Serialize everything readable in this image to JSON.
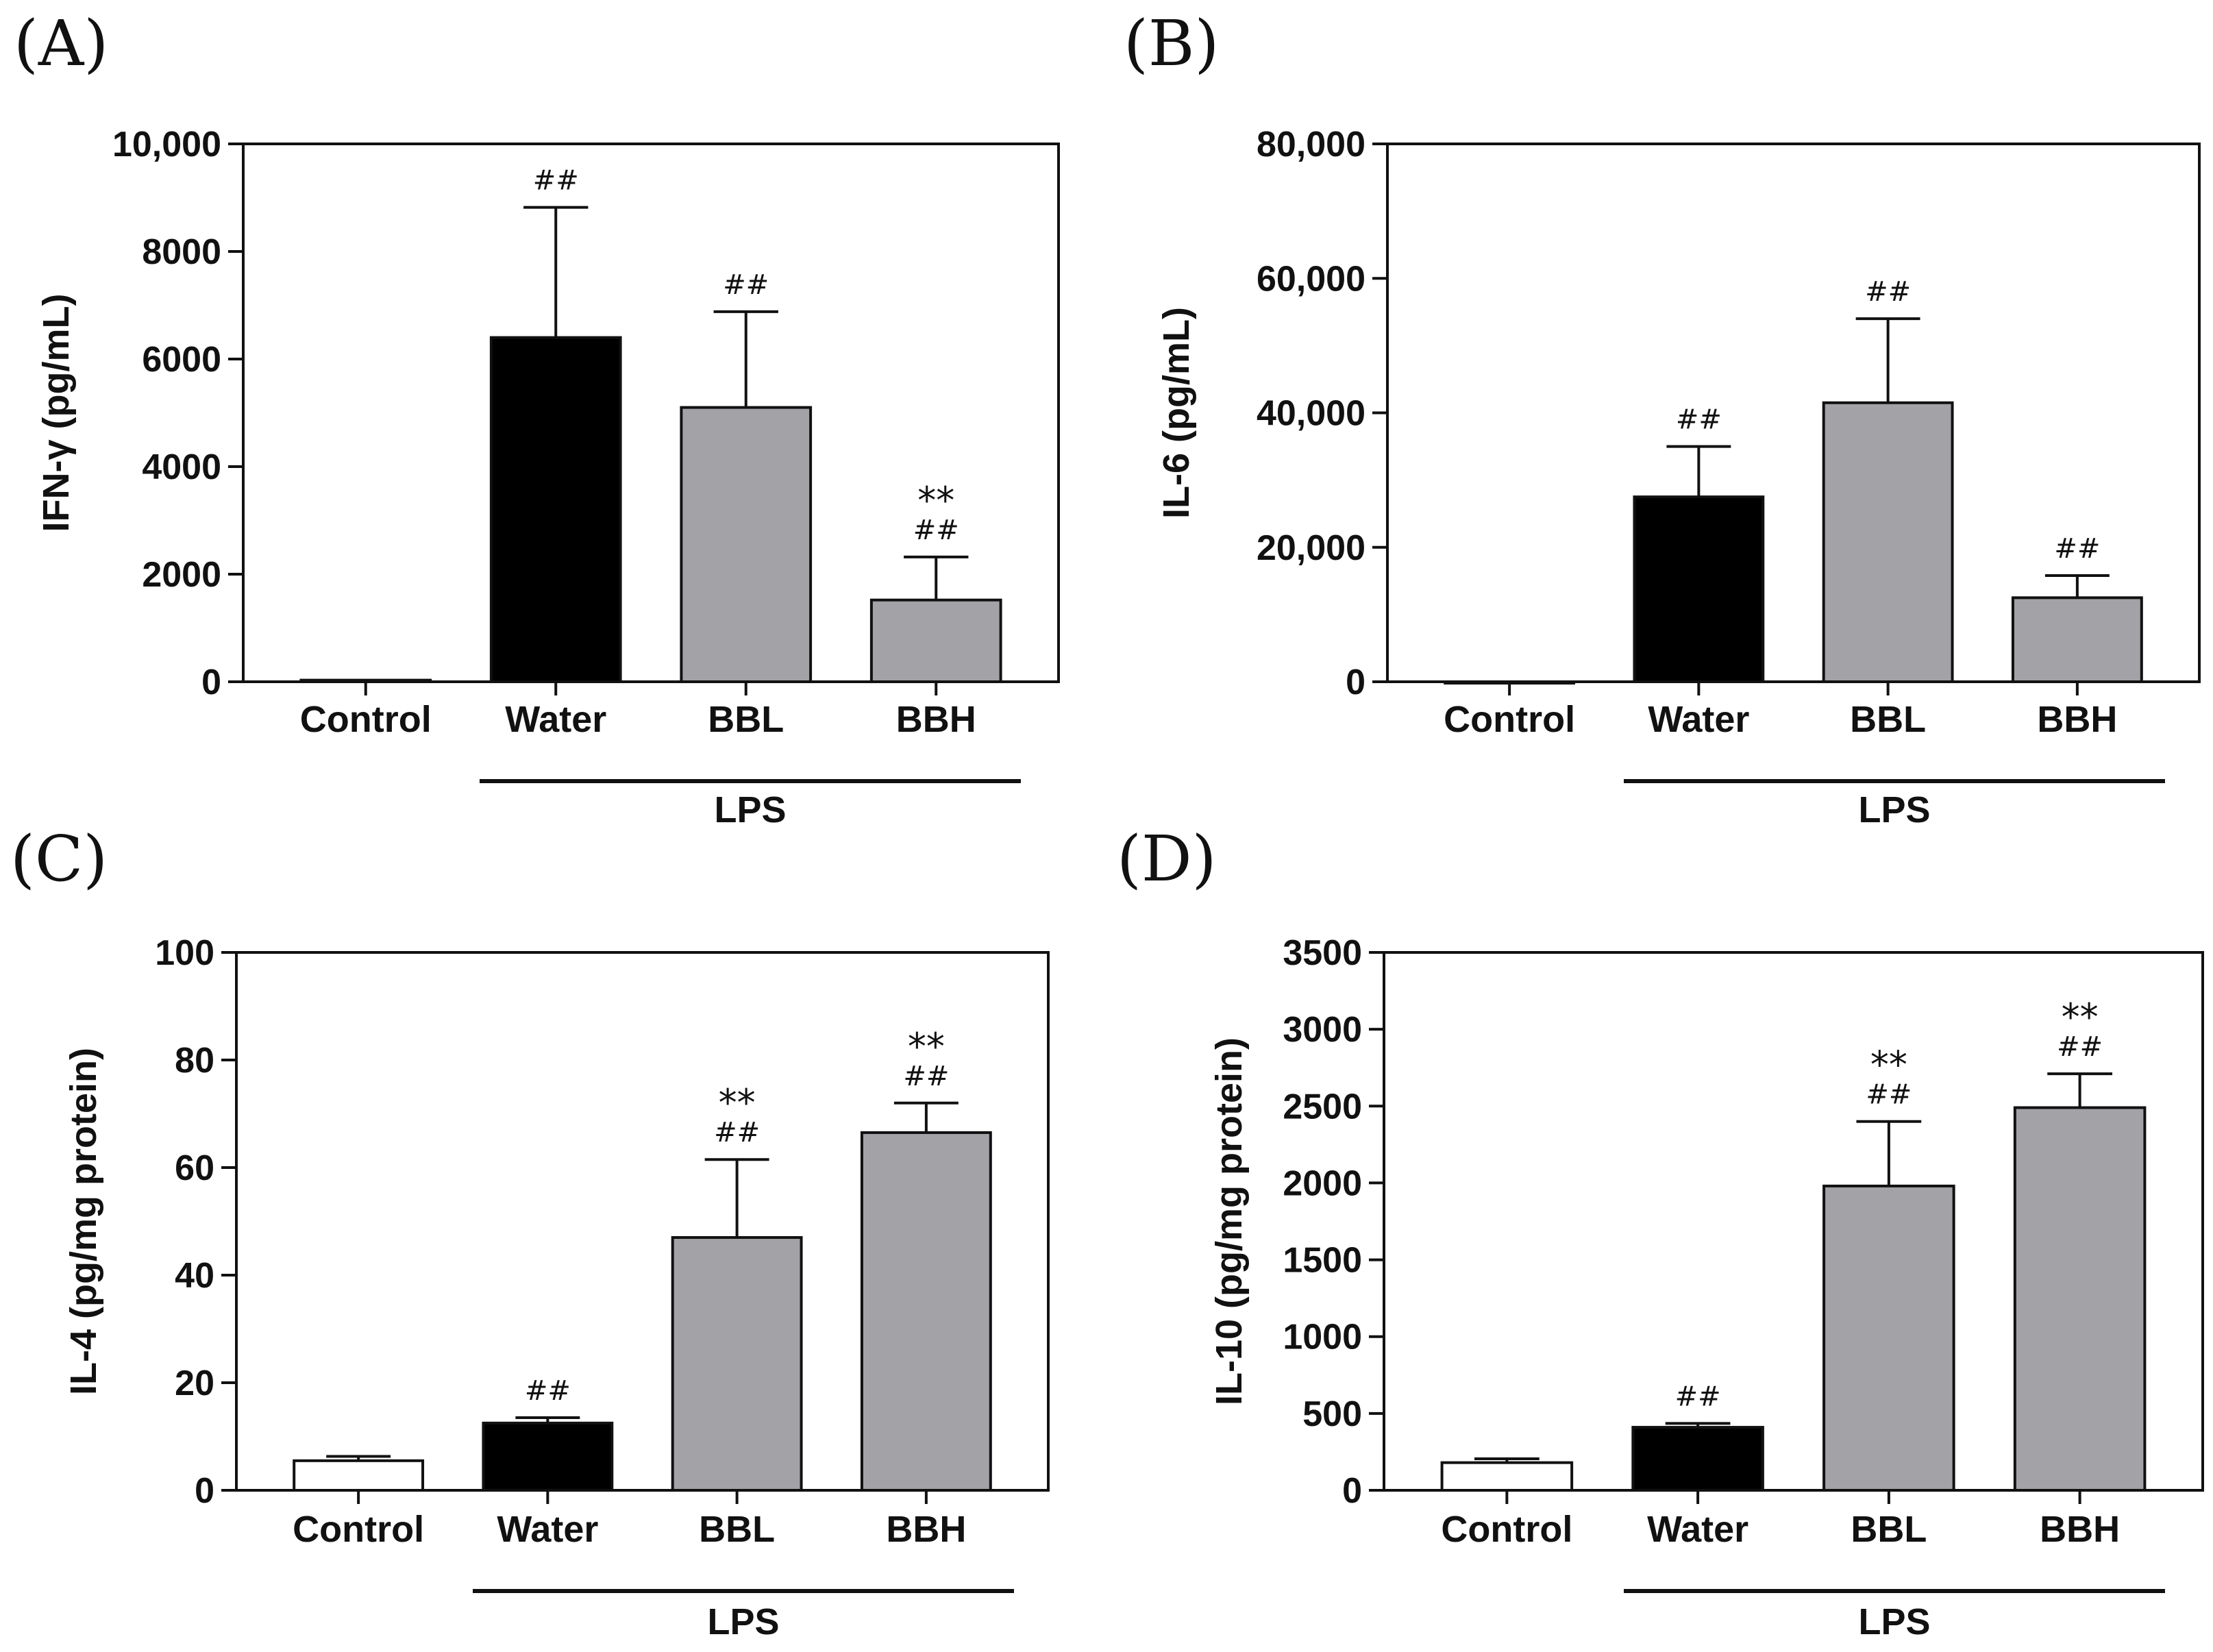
{
  "figure": {
    "colors": {
      "Control": "#ffffff",
      "Water": "#000000",
      "BBL": "#a3a2a7",
      "BBH": "#a3a2a7",
      "axis": "#111111"
    }
  },
  "chart_data": [
    {
      "type": "bar",
      "panel": "(A)",
      "ylabel": "IFN-γ (pg/mL)",
      "categories": [
        "Control",
        "Water",
        "BBL",
        "BBH"
      ],
      "values": [
        30,
        6400,
        5100,
        1520
      ],
      "errors": [
        0,
        2420,
        1780,
        800
      ],
      "ylim": [
        0,
        10000
      ],
      "ticks": [
        0,
        2000,
        4000,
        6000,
        8000,
        10000
      ],
      "tick_labels": [
        "0",
        "2000",
        "4000",
        "6000",
        "8000",
        "10,000"
      ],
      "annotations": [
        [],
        [
          "##"
        ],
        [
          "##"
        ],
        [
          "##",
          "**"
        ]
      ],
      "group_label": "LPS",
      "group_span": [
        "Water",
        "BBH"
      ]
    },
    {
      "type": "bar",
      "panel": "(B)",
      "ylabel": "IL-6 (pg/mL)",
      "categories": [
        "Control",
        "Water",
        "BBL",
        "BBH"
      ],
      "values": [
        0,
        27500,
        41500,
        12500
      ],
      "errors": [
        0,
        7500,
        12500,
        3300
      ],
      "ylim": [
        0,
        80000
      ],
      "ticks": [
        0,
        20000,
        40000,
        60000,
        80000
      ],
      "tick_labels": [
        "0",
        "20,000",
        "40,000",
        "60,000",
        "80,000"
      ],
      "annotations": [
        [],
        [
          "##"
        ],
        [
          "##"
        ],
        [
          "##"
        ]
      ],
      "group_label": "LPS",
      "group_span": [
        "Water",
        "BBH"
      ]
    },
    {
      "type": "bar",
      "panel": "(C)",
      "ylabel": "IL-4 (pg/mg protein)",
      "categories": [
        "Control",
        "Water",
        "BBL",
        "BBH"
      ],
      "values": [
        5.5,
        12.5,
        47,
        66.5
      ],
      "errors": [
        0.8,
        1.0,
        14.5,
        5.5
      ],
      "ylim": [
        0,
        100
      ],
      "ticks": [
        0,
        20,
        40,
        60,
        80,
        100
      ],
      "tick_labels": [
        "0",
        "20",
        "40",
        "60",
        "80",
        "100"
      ],
      "annotations": [
        [],
        [
          "##"
        ],
        [
          "##",
          "**"
        ],
        [
          "##",
          "**"
        ]
      ],
      "group_label": "LPS",
      "group_span": [
        "Water",
        "BBH"
      ]
    },
    {
      "type": "bar",
      "panel": "(D)",
      "ylabel": "IL-10 (pg/mg protein)",
      "categories": [
        "Control",
        "Water",
        "BBL",
        "BBH"
      ],
      "values": [
        180,
        410,
        1980,
        2490
      ],
      "errors": [
        25,
        25,
        420,
        220
      ],
      "ylim": [
        0,
        3500
      ],
      "ticks": [
        0,
        500,
        1000,
        1500,
        2000,
        2500,
        3000,
        3500
      ],
      "tick_labels": [
        "0",
        "500",
        "1000",
        "1500",
        "2000",
        "2500",
        "3000",
        "3500"
      ],
      "annotations": [
        [],
        [
          "##"
        ],
        [
          "##",
          "**"
        ],
        [
          "##",
          "**"
        ]
      ],
      "group_label": "LPS",
      "group_span": [
        "Water",
        "BBH"
      ]
    }
  ]
}
